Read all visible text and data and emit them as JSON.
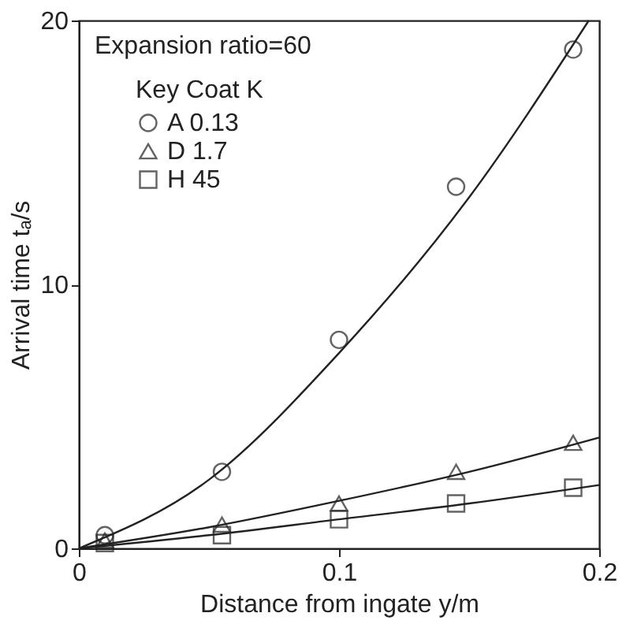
{
  "chart_data": {
    "type": "scatter",
    "xlabel": "Distance from ingate y/m",
    "ylabel": "Arrival time tₐ/s",
    "annotations": [
      "Expansion ratio=60"
    ],
    "legend_title": "Key Coat K",
    "legend": "top left",
    "grid": false,
    "xlim": [
      0,
      0.2
    ],
    "xticks": [
      0,
      0.1,
      0.2
    ],
    "ylim": [
      0,
      20
    ],
    "yticks": [
      0,
      10,
      20
    ],
    "series": [
      {
        "name": "A 0.13",
        "color": "#222222",
        "marker": "circle",
        "x": [
          0.01,
          0.055,
          0.1,
          0.145,
          0.19
        ],
        "values": [
          0.5,
          2.9,
          7.9,
          13.7,
          18.9
        ]
      },
      {
        "name": "D 1.7",
        "color": "#222222",
        "marker": "triangle",
        "x": [
          0.01,
          0.055,
          0.1,
          0.145,
          0.19
        ],
        "values": [
          0.3,
          0.9,
          1.7,
          2.9,
          4.0
        ]
      },
      {
        "name": "H 45",
        "color": "#222222",
        "marker": "square",
        "x": [
          0.01,
          0.055,
          0.1,
          0.145,
          0.19
        ],
        "values": [
          0.2,
          0.5,
          1.1,
          1.7,
          2.3
        ]
      },
      {
        "type": "line",
        "color": "#222222",
        "x": [
          0,
          0.05,
          0.1,
          0.15,
          0.196
        ],
        "values": [
          0,
          2.6,
          7.4,
          13.3,
          20
        ]
      },
      {
        "type": "line",
        "color": "#222222",
        "x": [
          0,
          0.05,
          0.1,
          0.15,
          0.2
        ],
        "values": [
          0,
          0.8,
          1.8,
          2.9,
          4.2
        ]
      },
      {
        "type": "line",
        "color": "#222222",
        "x": [
          0,
          0.05,
          0.1,
          0.15,
          0.2
        ],
        "values": [
          0,
          0.5,
          1.1,
          1.7,
          2.4
        ]
      }
    ]
  }
}
